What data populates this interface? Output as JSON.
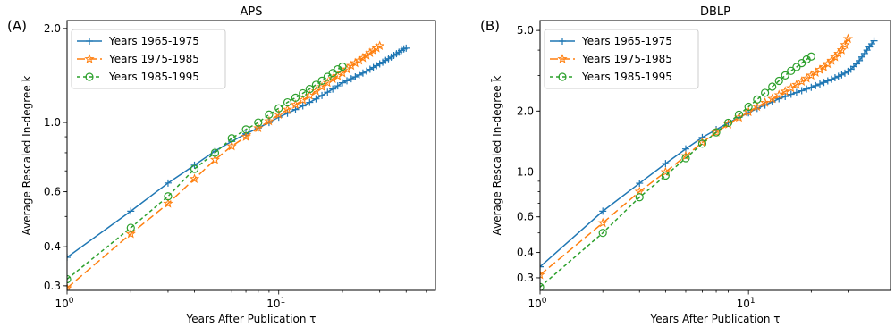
{
  "chart_data": [
    {
      "type": "line",
      "panel_label": "(A)",
      "title": "APS",
      "xlabel": "Years After Publication τ",
      "ylabel": "Average Rescaled In-degree k̃",
      "xscale": "log",
      "yscale": "log",
      "xlim": [
        1,
        55
      ],
      "ylim": [
        0.29,
        2.12
      ],
      "x_ticks": [
        {
          "value": 1,
          "base": "10",
          "exp": "0"
        },
        {
          "value": 10,
          "base": "10",
          "exp": "1"
        }
      ],
      "y_ticks": [
        {
          "value": 0.3,
          "label": "0.3"
        },
        {
          "value": 0.4,
          "label": "0.4"
        },
        {
          "value": 0.6,
          "label": "0.6"
        },
        {
          "value": 1.0,
          "label": "1.0"
        },
        {
          "value": 2.0,
          "label": "2.0"
        }
      ],
      "legend_position": "top-left",
      "series": [
        {
          "name": "Years 1965-1975",
          "color": "#1f77b4",
          "dash": "",
          "marker": "plus",
          "x": [
            1,
            2,
            3,
            4,
            5,
            6,
            7,
            8,
            9,
            10,
            11,
            12,
            13,
            14,
            15,
            16,
            17,
            18,
            19,
            20,
            21,
            22,
            23,
            24,
            25,
            26,
            27,
            28,
            29,
            30,
            31,
            32,
            33,
            34,
            35,
            36,
            37,
            38,
            39,
            40
          ],
          "y": [
            0.37,
            0.52,
            0.64,
            0.73,
            0.81,
            0.87,
            0.92,
            0.96,
            1.0,
            1.04,
            1.07,
            1.1,
            1.13,
            1.16,
            1.19,
            1.22,
            1.25,
            1.28,
            1.31,
            1.34,
            1.36,
            1.38,
            1.4,
            1.42,
            1.44,
            1.46,
            1.48,
            1.5,
            1.52,
            1.54,
            1.56,
            1.58,
            1.6,
            1.62,
            1.64,
            1.66,
            1.68,
            1.7,
            1.72,
            1.73
          ]
        },
        {
          "name": "Years 1975-1985",
          "color": "#ff7f0e",
          "dash": "9,4",
          "marker": "star",
          "x": [
            1,
            2,
            3,
            4,
            5,
            6,
            7,
            8,
            9,
            10,
            11,
            12,
            13,
            14,
            15,
            16,
            17,
            18,
            19,
            20,
            21,
            22,
            23,
            24,
            25,
            26,
            27,
            28,
            29,
            30
          ],
          "y": [
            0.295,
            0.44,
            0.55,
            0.66,
            0.76,
            0.84,
            0.9,
            0.96,
            1.01,
            1.06,
            1.1,
            1.14,
            1.18,
            1.22,
            1.26,
            1.3,
            1.34,
            1.38,
            1.41,
            1.44,
            1.48,
            1.52,
            1.55,
            1.58,
            1.61,
            1.64,
            1.67,
            1.7,
            1.73,
            1.76
          ]
        },
        {
          "name": "Years 1985-1995",
          "color": "#2ca02c",
          "dash": "4,3",
          "marker": "circle",
          "x": [
            1,
            2,
            3,
            4,
            5,
            6,
            7,
            8,
            9,
            10,
            11,
            12,
            13,
            14,
            15,
            16,
            17,
            18,
            19,
            20
          ],
          "y": [
            0.315,
            0.46,
            0.58,
            0.71,
            0.8,
            0.89,
            0.95,
            1.0,
            1.06,
            1.11,
            1.16,
            1.2,
            1.24,
            1.28,
            1.32,
            1.36,
            1.4,
            1.44,
            1.48,
            1.51
          ]
        }
      ]
    },
    {
      "type": "line",
      "panel_label": "(B)",
      "title": "DBLP",
      "xlabel": "Years After Publication τ",
      "ylabel": "Average Rescaled In-degree k̃",
      "xscale": "log",
      "yscale": "log",
      "xlim": [
        1,
        48
      ],
      "ylim": [
        0.26,
        5.6
      ],
      "x_ticks": [
        {
          "value": 1,
          "base": "10",
          "exp": "0"
        },
        {
          "value": 10,
          "base": "10",
          "exp": "1"
        }
      ],
      "y_ticks": [
        {
          "value": 0.3,
          "label": "0.3"
        },
        {
          "value": 0.4,
          "label": "0.4"
        },
        {
          "value": 0.6,
          "label": "0.6"
        },
        {
          "value": 1.0,
          "label": "1.0"
        },
        {
          "value": 2.0,
          "label": "2.0"
        },
        {
          "value": 5.0,
          "label": "5.0"
        }
      ],
      "legend_position": "top-left",
      "series": [
        {
          "name": "Years 1965-1975",
          "color": "#1f77b4",
          "dash": "",
          "marker": "plus",
          "x": [
            1,
            2,
            3,
            4,
            5,
            6,
            7,
            8,
            9,
            10,
            11,
            12,
            13,
            14,
            15,
            16,
            17,
            18,
            19,
            20,
            21,
            22,
            23,
            24,
            25,
            26,
            27,
            28,
            29,
            30,
            31,
            32,
            33,
            34,
            35,
            36,
            37,
            38,
            39,
            40
          ],
          "y": [
            0.34,
            0.64,
            0.88,
            1.1,
            1.3,
            1.48,
            1.62,
            1.75,
            1.86,
            1.96,
            2.06,
            2.14,
            2.22,
            2.3,
            2.36,
            2.42,
            2.47,
            2.52,
            2.57,
            2.62,
            2.67,
            2.72,
            2.77,
            2.82,
            2.87,
            2.92,
            2.97,
            3.02,
            3.08,
            3.14,
            3.22,
            3.32,
            3.42,
            3.55,
            3.7,
            3.85,
            4.0,
            4.15,
            4.3,
            4.45
          ]
        },
        {
          "name": "Years 1975-1985",
          "color": "#ff7f0e",
          "dash": "9,4",
          "marker": "star",
          "x": [
            1,
            2,
            3,
            4,
            5,
            6,
            7,
            8,
            9,
            10,
            11,
            12,
            13,
            14,
            15,
            16,
            17,
            18,
            19,
            20,
            21,
            22,
            23,
            24,
            25,
            26,
            27,
            28,
            29,
            30
          ],
          "y": [
            0.31,
            0.56,
            0.8,
            1.0,
            1.2,
            1.4,
            1.57,
            1.72,
            1.86,
            1.98,
            2.1,
            2.2,
            2.3,
            2.4,
            2.5,
            2.6,
            2.7,
            2.8,
            2.9,
            3.0,
            3.1,
            3.2,
            3.3,
            3.42,
            3.55,
            3.7,
            3.85,
            4.0,
            4.25,
            4.55
          ]
        },
        {
          "name": "Years 1985-1995",
          "color": "#2ca02c",
          "dash": "4,3",
          "marker": "circle",
          "x": [
            1,
            2,
            3,
            4,
            5,
            6,
            7,
            8,
            9,
            10,
            11,
            12,
            13,
            14,
            15,
            16,
            17,
            18,
            19,
            20
          ],
          "y": [
            0.27,
            0.5,
            0.75,
            0.96,
            1.17,
            1.38,
            1.57,
            1.75,
            1.92,
            2.1,
            2.28,
            2.46,
            2.64,
            2.82,
            3.0,
            3.16,
            3.3,
            3.45,
            3.6,
            3.72
          ]
        }
      ]
    }
  ]
}
